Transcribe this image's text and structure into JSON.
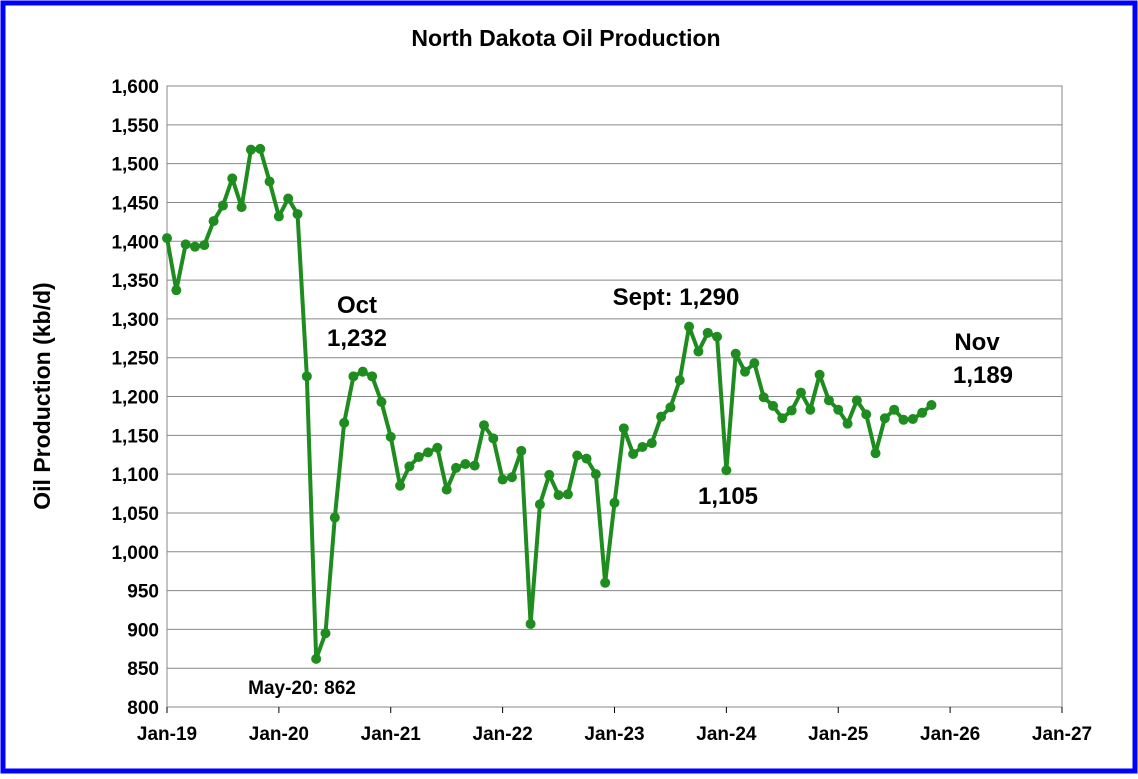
{
  "chart_data": {
    "type": "line",
    "title": "North Dakota Oil Production",
    "y_label": "Oil Production (kb/d)",
    "x": [
      "2019-01",
      "2019-02",
      "2019-03",
      "2019-04",
      "2019-05",
      "2019-06",
      "2019-07",
      "2019-08",
      "2019-09",
      "2019-10",
      "2019-11",
      "2019-12",
      "2020-01",
      "2020-02",
      "2020-03",
      "2020-04",
      "2020-05",
      "2020-06",
      "2020-07",
      "2020-08",
      "2020-09",
      "2020-10",
      "2020-11",
      "2020-12",
      "2021-01",
      "2021-02",
      "2021-03",
      "2021-04",
      "2021-05",
      "2021-06",
      "2021-07",
      "2021-08",
      "2021-09",
      "2021-10",
      "2021-11",
      "2021-12",
      "2022-01",
      "2022-02",
      "2022-03",
      "2022-04",
      "2022-05",
      "2022-06",
      "2022-07",
      "2022-08",
      "2022-09",
      "2022-10",
      "2022-11",
      "2022-12",
      "2023-01",
      "2023-02",
      "2023-03",
      "2023-04",
      "2023-05",
      "2023-06",
      "2023-07",
      "2023-08",
      "2023-09",
      "2023-10",
      "2023-11",
      "2023-12",
      "2024-01",
      "2024-02",
      "2024-03",
      "2024-04",
      "2024-05",
      "2024-06",
      "2024-07",
      "2024-08",
      "2024-09",
      "2024-10",
      "2024-11",
      "2024-12",
      "2025-01",
      "2025-02",
      "2025-03",
      "2025-04",
      "2025-05",
      "2025-06",
      "2025-07",
      "2025-08",
      "2025-09",
      "2025-10",
      "2025-11"
    ],
    "series": [
      {
        "name": "North Dakota",
        "color": "#1e8c1e",
        "values": [
          1404,
          1337,
          1396,
          1393,
          1395,
          1426,
          1446,
          1481,
          1444,
          1518,
          1519,
          1477,
          1432,
          1455,
          1435,
          1226,
          862,
          895,
          1044,
          1166,
          1226,
          1232,
          1226,
          1193,
          1148,
          1085,
          1110,
          1122,
          1128,
          1134,
          1080,
          1108,
          1113,
          1111,
          1163,
          1146,
          1093,
          1096,
          1130,
          907,
          1061,
          1099,
          1073,
          1074,
          1124,
          1120,
          1100,
          960,
          1063,
          1159,
          1126,
          1135,
          1140,
          1174,
          1186,
          1221,
          1290,
          1258,
          1282,
          1277,
          1105,
          1255,
          1232,
          1243,
          1199,
          1188,
          1172,
          1182,
          1205,
          1183,
          1228,
          1195,
          1183,
          1165,
          1195,
          1177,
          1127,
          1172,
          1183,
          1170,
          1171,
          1179,
          1189
        ]
      }
    ],
    "xlim": [
      "2019-01",
      "2027-01"
    ],
    "xticks": [
      {
        "value": "2019-01",
        "label": "Jan-19"
      },
      {
        "value": "2020-01",
        "label": "Jan-20"
      },
      {
        "value": "2021-01",
        "label": "Jan-21"
      },
      {
        "value": "2022-01",
        "label": "Jan-22"
      },
      {
        "value": "2023-01",
        "label": "Jan-23"
      },
      {
        "value": "2024-01",
        "label": "Jan-24"
      },
      {
        "value": "2025-01",
        "label": "Jan-25"
      },
      {
        "value": "2026-01",
        "label": "Jan-26"
      },
      {
        "value": "2027-01",
        "label": "Jan-27"
      }
    ],
    "ylim": [
      800,
      1600
    ],
    "yticks": [
      800,
      850,
      900,
      950,
      {
        "value": 1000,
        "label": "1,000"
      },
      {
        "value": 1050,
        "label": "1,050"
      },
      {
        "value": 1100,
        "label": "1,100"
      },
      {
        "value": 1150,
        "label": "1,150"
      },
      {
        "value": 1200,
        "label": "1,200"
      },
      {
        "value": 1250,
        "label": "1,250"
      },
      {
        "value": 1300,
        "label": "1,300"
      },
      {
        "value": 1350,
        "label": "1,350"
      },
      {
        "value": 1400,
        "label": "1,400"
      },
      {
        "value": 1450,
        "label": "1,450"
      },
      {
        "value": 1500,
        "label": "1,500"
      },
      {
        "value": 1550,
        "label": "1,550"
      },
      {
        "value": 1600,
        "label": "1,600"
      }
    ],
    "grid": true,
    "annotations": [
      "Oct",
      "1,232",
      "Sept: 1,290",
      "1,105",
      "Nov",
      "1,189",
      "May-20: 862"
    ]
  }
}
